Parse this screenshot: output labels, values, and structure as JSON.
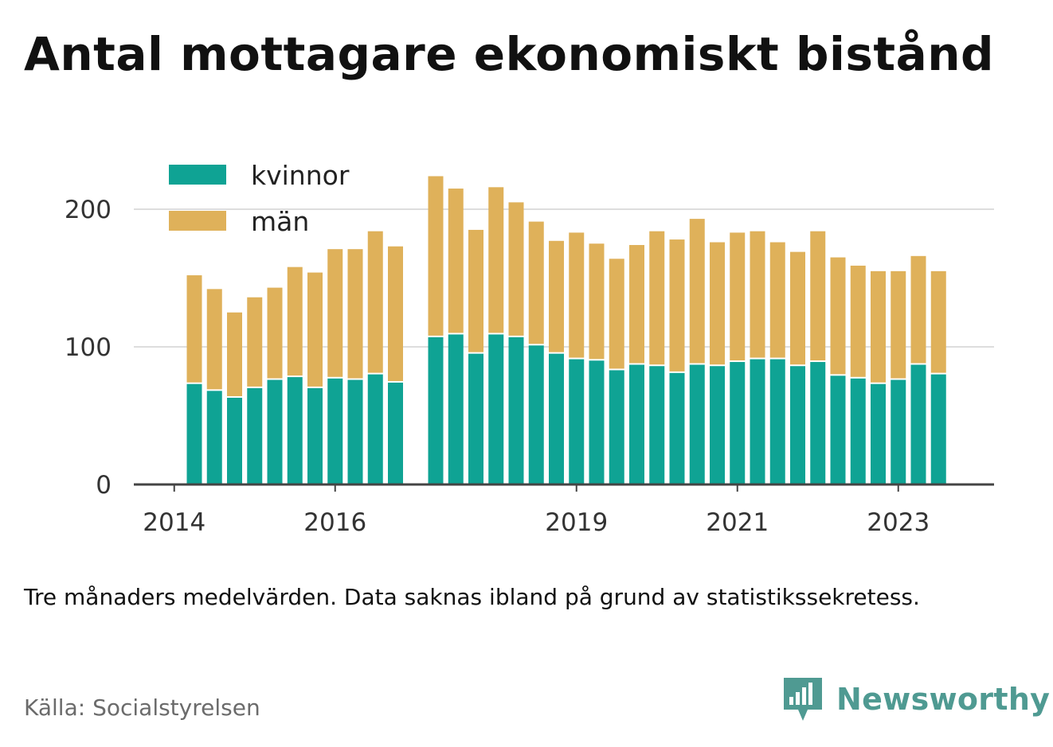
{
  "title": "Antal mottagare ekonomiskt bistånd",
  "note": "Tre månaders medelvärden. Data saknas ibland på grund av statistikssekretess.",
  "source": "Källa: Socialstyrelsen",
  "brand": {
    "name": "Newsworthy",
    "icon": "newsworthy-logo-icon",
    "color": "#4f9a92"
  },
  "colors": {
    "kvinnor": "#0fa394",
    "man": "#dfb15a",
    "grid": "#dddddd",
    "axis": "#444444"
  },
  "chart_data": {
    "type": "bar",
    "stacked": true,
    "title": "Antal mottagare ekonomiskt bistånd",
    "xlabel": "",
    "ylabel": "",
    "ylim": [
      0,
      230
    ],
    "y_ticks": [
      0,
      100,
      200
    ],
    "grid": true,
    "legend_position": "top-left",
    "x_ticks": [
      {
        "label": "2014",
        "index": -1
      },
      {
        "label": "2016",
        "index": 7
      },
      {
        "label": "2019",
        "index": 19
      },
      {
        "label": "2021",
        "index": 27
      },
      {
        "label": "2023",
        "index": 35
      }
    ],
    "series": [
      {
        "name": "kvinnor",
        "values": [
          73,
          68,
          63,
          70,
          76,
          78,
          70,
          77,
          76,
          80,
          74,
          null,
          107,
          109,
          95,
          109,
          107,
          101,
          95,
          91,
          90,
          83,
          87,
          86,
          81,
          87,
          86,
          89,
          91,
          91,
          86,
          89,
          79,
          77,
          73,
          76,
          87,
          80
        ]
      },
      {
        "name": "män",
        "values": [
          79,
          74,
          62,
          66,
          67,
          80,
          84,
          94,
          95,
          104,
          99,
          null,
          117,
          106,
          90,
          107,
          98,
          90,
          82,
          92,
          85,
          81,
          87,
          98,
          97,
          106,
          90,
          94,
          93,
          85,
          83,
          95,
          86,
          82,
          82,
          79,
          79,
          75
        ]
      }
    ]
  },
  "legend": [
    {
      "label": "kvinnor",
      "color": "#0fa394"
    },
    {
      "label": "män",
      "color": "#dfb15a"
    }
  ]
}
